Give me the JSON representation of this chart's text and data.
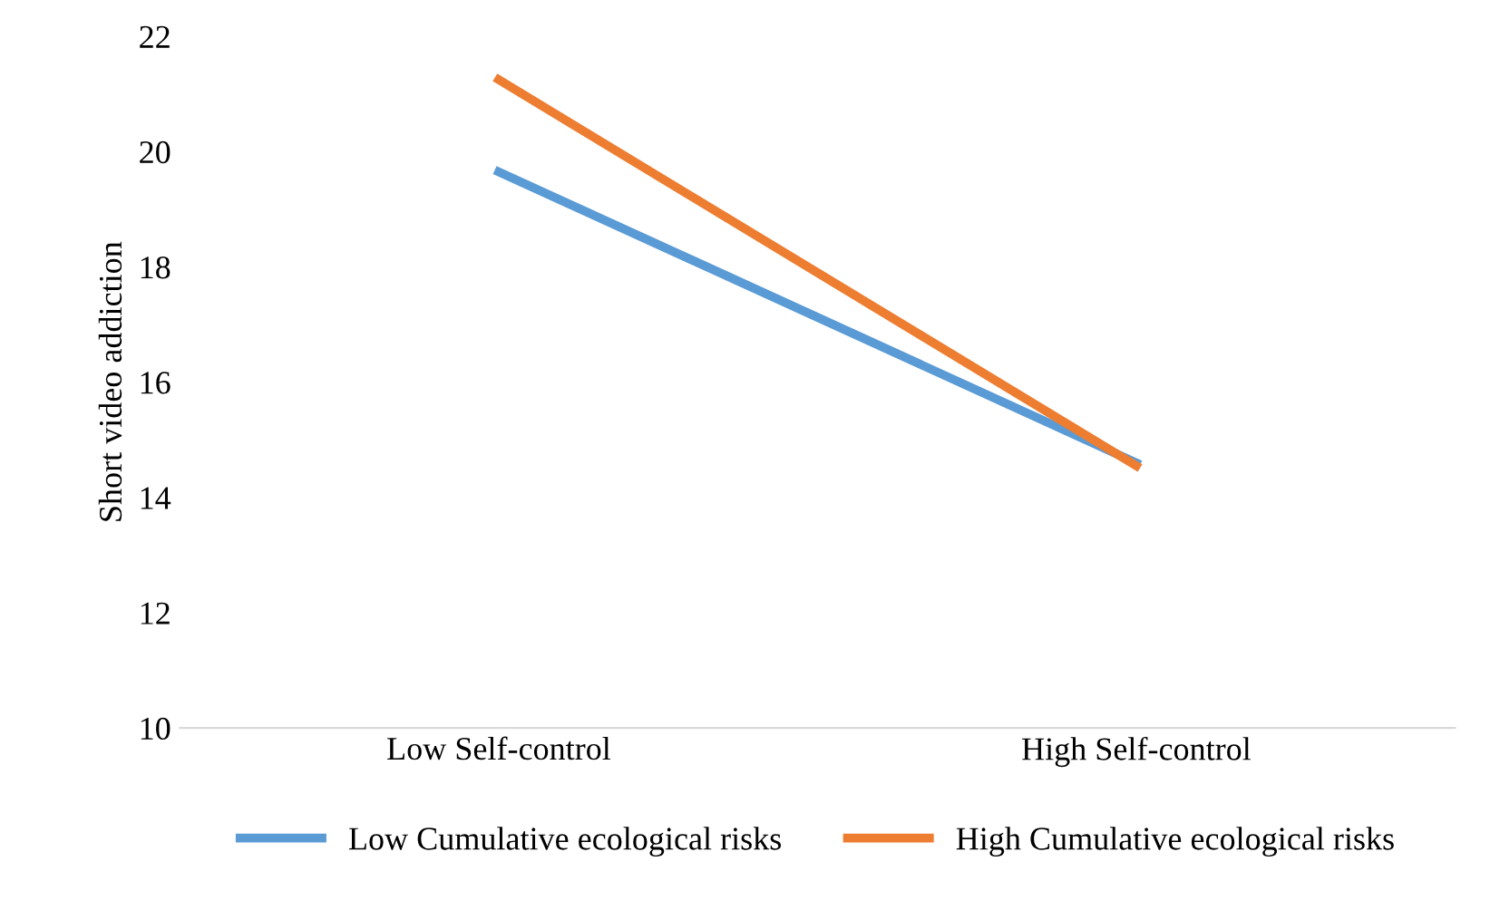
{
  "chart_data": {
    "type": "line",
    "ylabel": "Short video addiction",
    "categories": [
      "Low Self-control",
      "High Self-control"
    ],
    "series": [
      {
        "name": "Low Cumulative ecological risks",
        "color": "#5b9bd5",
        "values": [
          19.65,
          14.6
        ]
      },
      {
        "name": "High Cumulative ecological risks",
        "color": "#ed7d31",
        "values": [
          21.25,
          14.55
        ]
      }
    ],
    "ylim": [
      10,
      22
    ],
    "yticks": [
      10,
      12,
      14,
      16,
      18,
      20,
      22
    ],
    "grid": false,
    "legend": "bottom",
    "marker": "none",
    "line_style": "solid"
  }
}
